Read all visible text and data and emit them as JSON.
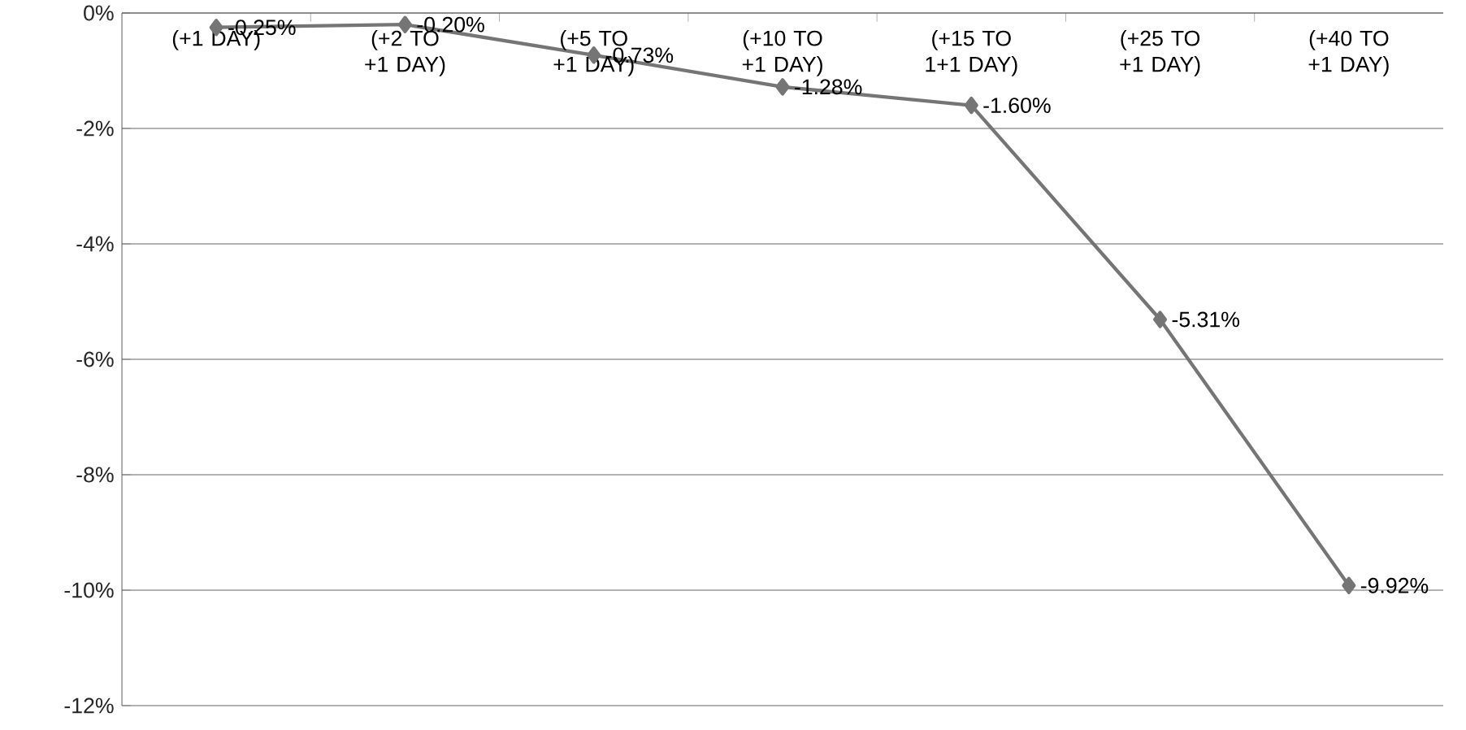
{
  "chart_data": {
    "type": "line",
    "categories": [
      "(+1 DAY)",
      "(+2 TO +1 DAY)",
      "(+5 TO +1 DAY)",
      "(+10 TO +1 DAY)",
      "(+15 TO 1+1 DAY)",
      "(+25 TO +1 DAY)",
      "(+40 TO +1 DAY)"
    ],
    "values": [
      -0.25,
      -0.2,
      -0.73,
      -1.28,
      -1.6,
      -5.31,
      -9.92
    ],
    "value_labels": [
      "-0.25%",
      "-0.20%",
      "-0.73%",
      "-1.28%",
      "-1.60%",
      "-5.31%",
      "-9.92%"
    ],
    "color": "#757575",
    "marker": "diamond",
    "line_style": "solid",
    "grid": "y",
    "ylim": [
      -12,
      0
    ],
    "yticks": [
      {
        "value": 0,
        "label": "0%"
      },
      {
        "value": -2,
        "label": "-2%"
      },
      {
        "value": -4,
        "label": "-4%"
      },
      {
        "value": -6,
        "label": "-6%"
      },
      {
        "value": -8,
        "label": "-8%"
      },
      {
        "value": -10,
        "label": "-10%"
      },
      {
        "value": -12,
        "label": "-12%"
      }
    ]
  }
}
